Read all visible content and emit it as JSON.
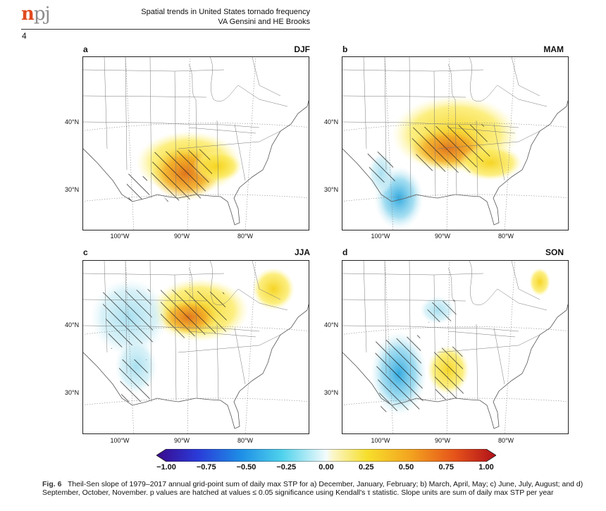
{
  "header": {
    "journal_logo_n": "n",
    "journal_logo_pj": "pj",
    "page_number": "4",
    "title_line1": "Spatial trends in United States tornado frequency",
    "title_line2": "VA Gensini and HE Brooks"
  },
  "panels": [
    {
      "letter": "a",
      "season": "DJF"
    },
    {
      "letter": "b",
      "season": "MAM"
    },
    {
      "letter": "c",
      "season": "JJA"
    },
    {
      "letter": "d",
      "season": "SON"
    }
  ],
  "axes": {
    "lat_labels": [
      "40°N",
      "30°N"
    ],
    "lon_labels": [
      "100°W",
      "90°W",
      "80°W"
    ]
  },
  "colorbar": {
    "ticks": [
      "−1.00",
      "−0.75",
      "−0.50",
      "−0.25",
      "0.00",
      "0.25",
      "0.50",
      "0.75",
      "1.00"
    ],
    "range": [
      -1.0,
      1.0
    ]
  },
  "caption": {
    "label": "Fig. 6",
    "text": "Theil-Sen slope of 1979–2017 annual grid-point sum of daily max STP for a) December, January, February; b) March, April, May; c) June, July, August; and d) September, October, November. p values are hatched at values ≤ 0.05 significance using Kendall's τ statistic. Slope units are sum of daily max STP per year"
  },
  "colors": {
    "logo_n": "#e04a1f",
    "logo_pj": "#8c8c8c"
  }
}
